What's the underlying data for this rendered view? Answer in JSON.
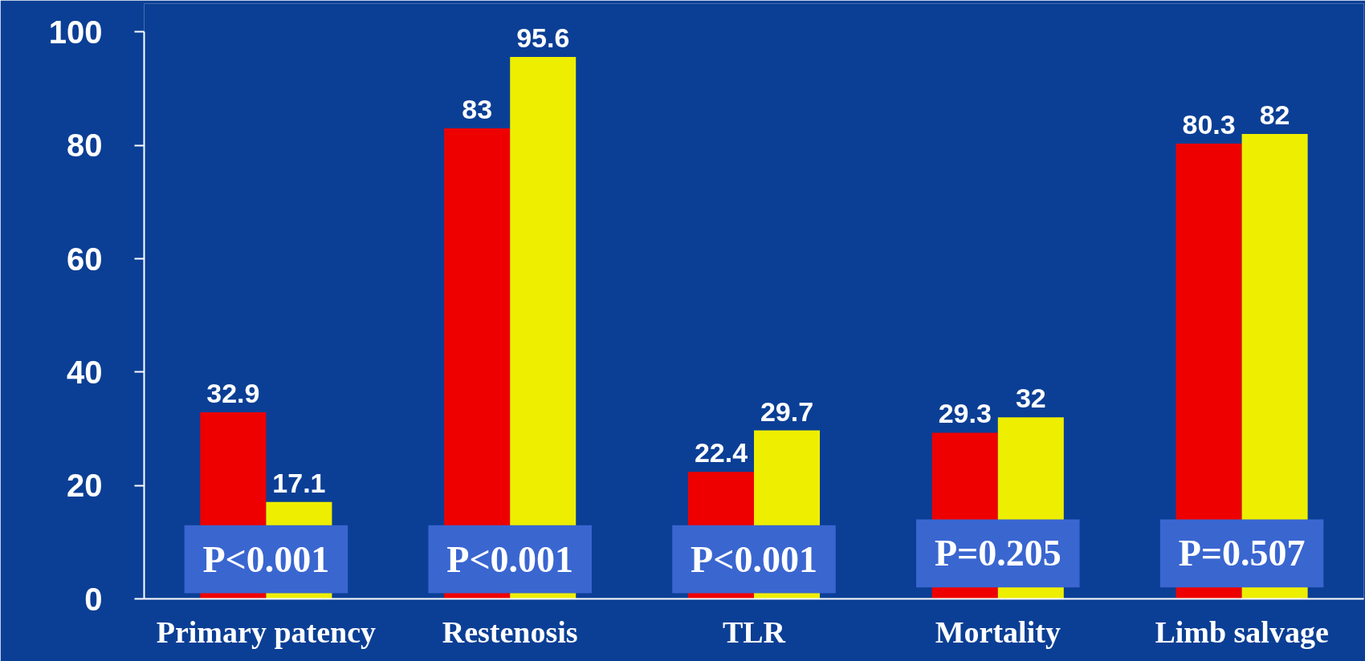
{
  "chart_data": {
    "type": "bar",
    "categories": [
      "Primary patency",
      "Restenosis",
      "TLR",
      "Mortality",
      "Limb salvage"
    ],
    "series": [
      {
        "color": "#ee0000",
        "values": [
          32.9,
          83,
          22.4,
          29.3,
          80.3
        ]
      },
      {
        "color": "#eeee00",
        "values": [
          17.1,
          95.6,
          29.7,
          32,
          82
        ]
      }
    ],
    "ylim": [
      0,
      100
    ],
    "yticks": [
      0,
      20,
      40,
      60,
      80,
      100
    ],
    "grid": false,
    "data_labels": true,
    "annotations": [
      {
        "text": "P<0.001",
        "x": "Primary patency",
        "y": 7
      },
      {
        "text": "P<0.001",
        "x": "Restenosis",
        "y": 7
      },
      {
        "text": "P<0.001",
        "x": "TLR",
        "y": 7
      },
      {
        "text": "P=0.205",
        "x": "Mortality",
        "y": 8
      },
      {
        "text": "P=0.507",
        "x": "Limb salvage",
        "y": 8
      }
    ]
  }
}
